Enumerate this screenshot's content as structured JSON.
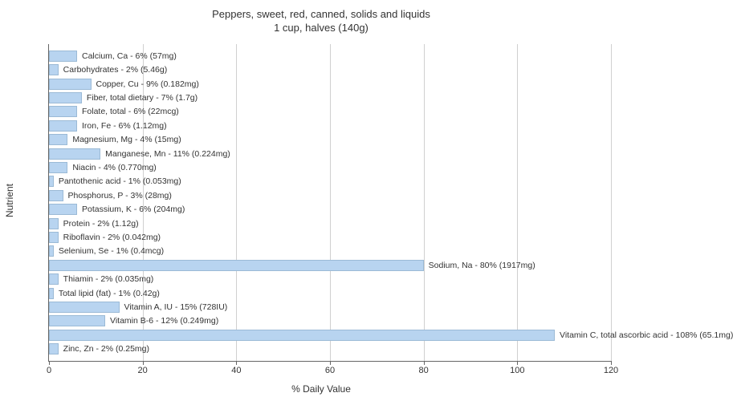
{
  "chart": {
    "type": "bar-horizontal",
    "title_line1": "Peppers, sweet, red, canned, solids and liquids",
    "title_line2": "1 cup, halves (140g)",
    "ylabel": "Nutrient",
    "xlabel": "% Daily Value",
    "xlim_max": 120,
    "xtick_step": 20,
    "xticks": [
      0,
      20,
      40,
      60,
      80,
      100,
      120
    ],
    "bar_color": "#b8d4f0",
    "bar_border_color": "#9bbad6",
    "grid_color": "#d0d0d0",
    "background_color": "#ffffff",
    "title_fontsize": 13,
    "label_fontsize": 12,
    "tick_fontsize": 11,
    "barlabel_fontsize": 10.5,
    "nutrients": [
      {
        "label": "Calcium, Ca - 6% (57mg)",
        "value": 6
      },
      {
        "label": "Carbohydrates - 2% (5.46g)",
        "value": 2
      },
      {
        "label": "Copper, Cu - 9% (0.182mg)",
        "value": 9
      },
      {
        "label": "Fiber, total dietary - 7% (1.7g)",
        "value": 7
      },
      {
        "label": "Folate, total - 6% (22mcg)",
        "value": 6
      },
      {
        "label": "Iron, Fe - 6% (1.12mg)",
        "value": 6
      },
      {
        "label": "Magnesium, Mg - 4% (15mg)",
        "value": 4
      },
      {
        "label": "Manganese, Mn - 11% (0.224mg)",
        "value": 11
      },
      {
        "label": "Niacin - 4% (0.770mg)",
        "value": 4
      },
      {
        "label": "Pantothenic acid - 1% (0.053mg)",
        "value": 1
      },
      {
        "label": "Phosphorus, P - 3% (28mg)",
        "value": 3
      },
      {
        "label": "Potassium, K - 6% (204mg)",
        "value": 6
      },
      {
        "label": "Protein - 2% (1.12g)",
        "value": 2
      },
      {
        "label": "Riboflavin - 2% (0.042mg)",
        "value": 2
      },
      {
        "label": "Selenium, Se - 1% (0.4mcg)",
        "value": 1
      },
      {
        "label": "Sodium, Na - 80% (1917mg)",
        "value": 80
      },
      {
        "label": "Thiamin - 2% (0.035mg)",
        "value": 2
      },
      {
        "label": "Total lipid (fat) - 1% (0.42g)",
        "value": 1
      },
      {
        "label": "Vitamin A, IU - 15% (728IU)",
        "value": 15
      },
      {
        "label": "Vitamin B-6 - 12% (0.249mg)",
        "value": 12
      },
      {
        "label": "Vitamin C, total ascorbic acid - 108% (65.1mg)",
        "value": 108
      },
      {
        "label": "Zinc, Zn - 2% (0.25mg)",
        "value": 2
      }
    ]
  }
}
